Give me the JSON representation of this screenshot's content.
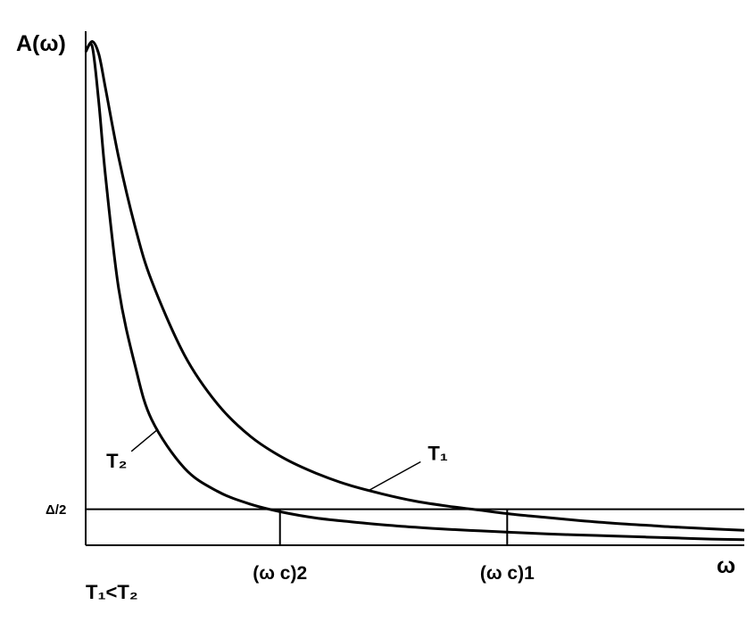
{
  "chart_data": {
    "type": "line",
    "title": "",
    "ylabel": "A(ω)",
    "xlabel": "ω",
    "grid": false,
    "legend": "none",
    "xlim": [
      0,
      10
    ],
    "ylim": [
      0,
      10
    ],
    "series": [
      {
        "name": "T1",
        "x": [
          0,
          0.1,
          0.2,
          0.3,
          0.5,
          0.75,
          1.0,
          1.5,
          2.0,
          2.5,
          3.0,
          3.5,
          4.0,
          4.5,
          5.0,
          5.5,
          6.0,
          6.5,
          7.0,
          7.5,
          8.0,
          8.5,
          9.0,
          9.5,
          10.0
        ],
        "values": [
          9.6,
          9.8,
          9.55,
          8.9,
          7.55,
          6.2,
          5.15,
          3.7,
          2.75,
          2.12,
          1.7,
          1.4,
          1.17,
          1.0,
          0.86,
          0.76,
          0.68,
          0.6,
          0.54,
          0.48,
          0.43,
          0.39,
          0.35,
          0.32,
          0.29
        ],
        "label": "T₁"
      },
      {
        "name": "T2",
        "x": [
          0,
          0.1,
          0.2,
          0.3,
          0.5,
          0.75,
          1.0,
          1.5,
          2.0,
          2.5,
          3.0,
          3.5,
          4.0,
          4.5,
          5.0,
          5.5,
          6.0,
          6.5,
          7.0,
          7.5,
          8.0,
          8.5,
          9.0,
          9.5,
          10.0
        ],
        "values": [
          9.6,
          9.7,
          8.6,
          7.2,
          5.0,
          3.5,
          2.45,
          1.5,
          1.05,
          0.8,
          0.64,
          0.53,
          0.46,
          0.4,
          0.35,
          0.31,
          0.28,
          0.25,
          0.22,
          0.2,
          0.18,
          0.16,
          0.14,
          0.12,
          0.11
        ],
        "label": "T₂"
      }
    ],
    "threshold": {
      "y": 0.7,
      "label": "Δ/2"
    },
    "markers": [
      {
        "x": 2.95,
        "label": "(ω c)2",
        "series": "T2"
      },
      {
        "x": 6.4,
        "label": "(ω c)1",
        "series": "T1"
      }
    ],
    "annotation": "T₁<T₂"
  }
}
